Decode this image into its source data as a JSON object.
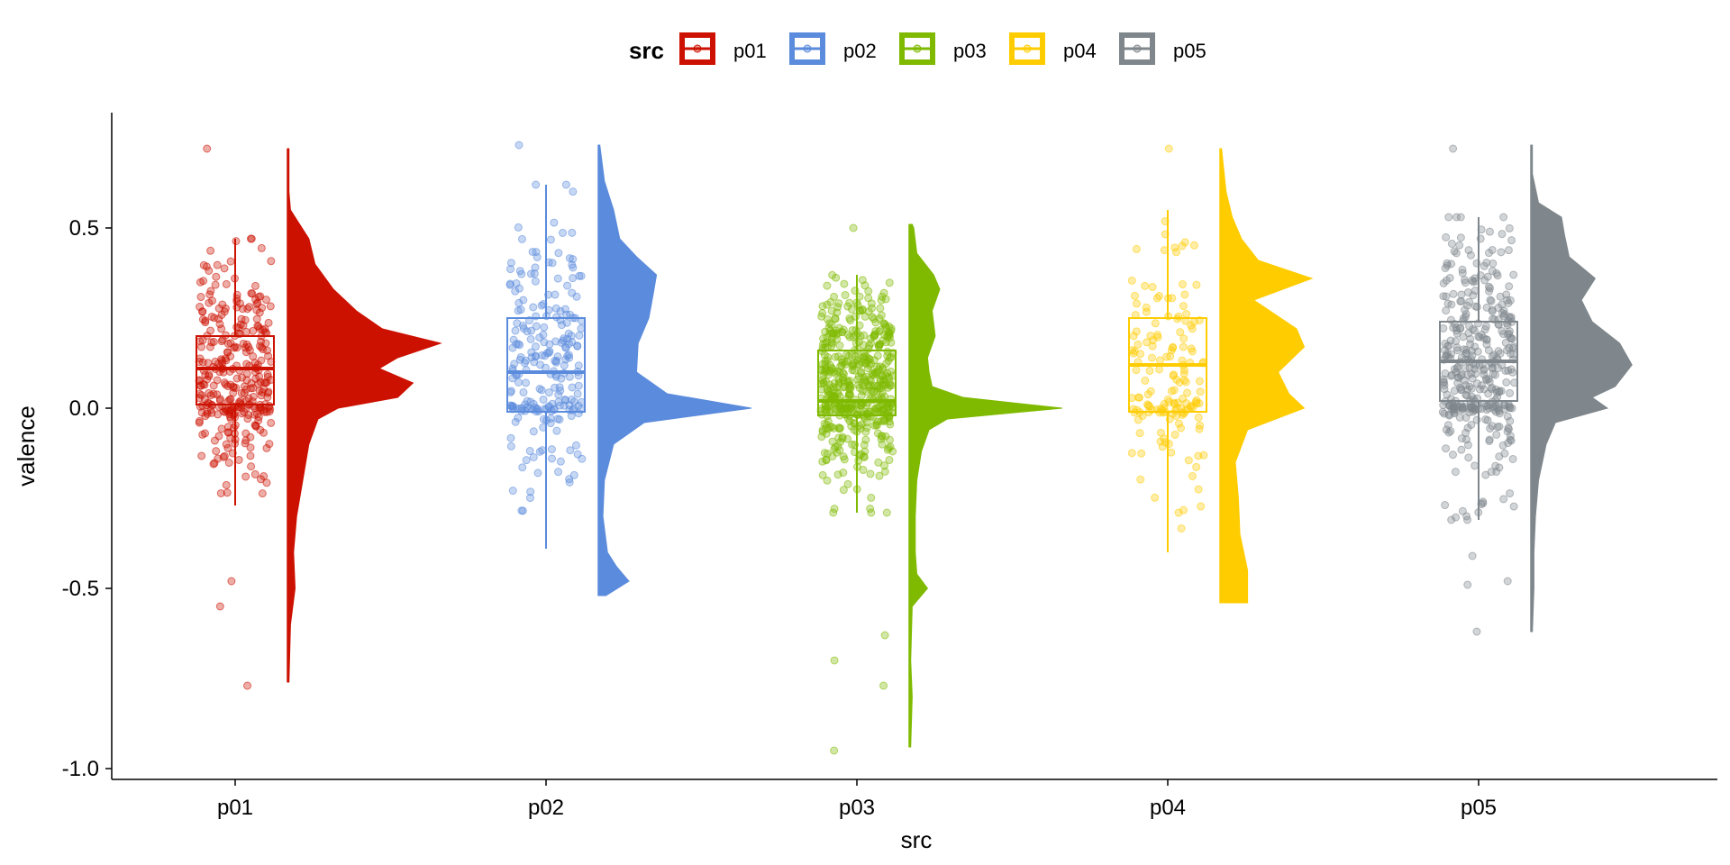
{
  "chart_data": {
    "type": "raincloud",
    "xlabel": "src",
    "ylabel": "valence",
    "ylim": [
      -1.03,
      0.82
    ],
    "yticks": [
      0.5,
      0.0,
      -0.5,
      -1.0
    ],
    "ytick_labels": [
      "0.5",
      "0.0",
      "-0.5",
      "-1.0"
    ],
    "categories": [
      "p01",
      "p02",
      "p03",
      "p04",
      "p05"
    ],
    "legend": {
      "title": "src",
      "position": "top",
      "entries": [
        "p01",
        "p02",
        "p03",
        "p04",
        "p05"
      ]
    },
    "grid": false,
    "series": [
      {
        "name": "p01",
        "color": "#CC1100",
        "n_points": 330,
        "box": {
          "min": -0.27,
          "q1": 0.01,
          "median": 0.11,
          "q3": 0.2,
          "max": 0.47
        },
        "outliers": [
          -0.48,
          -0.55,
          -0.77,
          0.72
        ],
        "density_range": [
          -0.76,
          0.72
        ],
        "density": [
          [
            -0.76,
            0.01
          ],
          [
            -0.6,
            0.02
          ],
          [
            -0.5,
            0.05
          ],
          [
            -0.4,
            0.04
          ],
          [
            -0.3,
            0.06
          ],
          [
            -0.2,
            0.1
          ],
          [
            -0.1,
            0.14
          ],
          [
            -0.03,
            0.2
          ],
          [
            0.0,
            0.33
          ],
          [
            0.03,
            0.72
          ],
          [
            0.07,
            0.82
          ],
          [
            0.11,
            0.6
          ],
          [
            0.14,
            0.72
          ],
          [
            0.18,
            1.0
          ],
          [
            0.22,
            0.62
          ],
          [
            0.27,
            0.45
          ],
          [
            0.33,
            0.3
          ],
          [
            0.4,
            0.18
          ],
          [
            0.47,
            0.14
          ],
          [
            0.51,
            0.08
          ],
          [
            0.55,
            0.02
          ],
          [
            0.6,
            0.01
          ],
          [
            0.72,
            0.01
          ]
        ]
      },
      {
        "name": "p02",
        "color": "#5B8BDC",
        "n_points": 240,
        "box": {
          "min": -0.39,
          "q1": -0.01,
          "median": 0.1,
          "q3": 0.25,
          "max": 0.62
        },
        "outliers": [
          0.73
        ],
        "density_range": [
          -0.52,
          0.73
        ],
        "density": [
          [
            -0.52,
            0.05
          ],
          [
            -0.48,
            0.2
          ],
          [
            -0.44,
            0.12
          ],
          [
            -0.4,
            0.06
          ],
          [
            -0.3,
            0.03
          ],
          [
            -0.2,
            0.04
          ],
          [
            -0.1,
            0.1
          ],
          [
            -0.04,
            0.3
          ],
          [
            0.0,
            1.0
          ],
          [
            0.04,
            0.45
          ],
          [
            0.1,
            0.25
          ],
          [
            0.18,
            0.26
          ],
          [
            0.25,
            0.33
          ],
          [
            0.32,
            0.36
          ],
          [
            0.37,
            0.38
          ],
          [
            0.42,
            0.25
          ],
          [
            0.47,
            0.14
          ],
          [
            0.55,
            0.1
          ],
          [
            0.63,
            0.04
          ],
          [
            0.73,
            0.01
          ]
        ]
      },
      {
        "name": "p03",
        "color": "#7FBA00",
        "n_points": 520,
        "box": {
          "min": -0.29,
          "q1": -0.02,
          "median": 0.02,
          "q3": 0.16,
          "max": 0.37
        },
        "outliers": [
          -0.63,
          -0.7,
          -0.77,
          -0.95,
          0.5
        ],
        "density_range": [
          -0.94,
          0.51
        ],
        "density": [
          [
            -0.94,
            0.01
          ],
          [
            -0.8,
            0.02
          ],
          [
            -0.7,
            0.01
          ],
          [
            -0.55,
            0.02
          ],
          [
            -0.5,
            0.12
          ],
          [
            -0.46,
            0.05
          ],
          [
            -0.4,
            0.04
          ],
          [
            -0.3,
            0.04
          ],
          [
            -0.2,
            0.05
          ],
          [
            -0.12,
            0.08
          ],
          [
            -0.06,
            0.13
          ],
          [
            -0.03,
            0.25
          ],
          [
            0.0,
            1.0
          ],
          [
            0.03,
            0.35
          ],
          [
            0.06,
            0.15
          ],
          [
            0.1,
            0.13
          ],
          [
            0.14,
            0.12
          ],
          [
            0.2,
            0.17
          ],
          [
            0.27,
            0.15
          ],
          [
            0.33,
            0.2
          ],
          [
            0.37,
            0.16
          ],
          [
            0.43,
            0.05
          ],
          [
            0.5,
            0.03
          ],
          [
            0.51,
            0.02
          ]
        ]
      },
      {
        "name": "p04",
        "color": "#FFCC00",
        "n_points": 160,
        "box": {
          "min": -0.4,
          "q1": -0.01,
          "median": 0.12,
          "q3": 0.25,
          "max": 0.55
        },
        "outliers": [
          0.72
        ],
        "density_range": [
          -0.54,
          0.72
        ],
        "density": [
          [
            -0.54,
            0.18
          ],
          [
            -0.45,
            0.18
          ],
          [
            -0.35,
            0.13
          ],
          [
            -0.25,
            0.12
          ],
          [
            -0.15,
            0.1
          ],
          [
            -0.06,
            0.18
          ],
          [
            0.0,
            0.55
          ],
          [
            0.04,
            0.45
          ],
          [
            0.1,
            0.38
          ],
          [
            0.17,
            0.55
          ],
          [
            0.22,
            0.5
          ],
          [
            0.3,
            0.22
          ],
          [
            0.36,
            0.6
          ],
          [
            0.41,
            0.25
          ],
          [
            0.47,
            0.14
          ],
          [
            0.53,
            0.08
          ],
          [
            0.6,
            0.04
          ],
          [
            0.72,
            0.01
          ]
        ]
      },
      {
        "name": "p05",
        "color": "#7F878C",
        "n_points": 390,
        "box": {
          "min": -0.31,
          "q1": 0.02,
          "median": 0.13,
          "q3": 0.24,
          "max": 0.53
        },
        "outliers": [
          -0.48,
          -0.49,
          -0.41,
          -0.62,
          0.72
        ],
        "density_range": [
          -0.62,
          0.73
        ],
        "density": [
          [
            -0.62,
            0.01
          ],
          [
            -0.5,
            0.02
          ],
          [
            -0.4,
            0.02
          ],
          [
            -0.3,
            0.03
          ],
          [
            -0.2,
            0.05
          ],
          [
            -0.1,
            0.1
          ],
          [
            -0.04,
            0.16
          ],
          [
            0.0,
            0.5
          ],
          [
            0.03,
            0.4
          ],
          [
            0.06,
            0.55
          ],
          [
            0.12,
            0.66
          ],
          [
            0.18,
            0.58
          ],
          [
            0.24,
            0.4
          ],
          [
            0.3,
            0.33
          ],
          [
            0.36,
            0.42
          ],
          [
            0.42,
            0.25
          ],
          [
            0.48,
            0.22
          ],
          [
            0.53,
            0.2
          ],
          [
            0.57,
            0.05
          ],
          [
            0.65,
            0.01
          ],
          [
            0.73,
            0.01
          ]
        ]
      }
    ]
  }
}
